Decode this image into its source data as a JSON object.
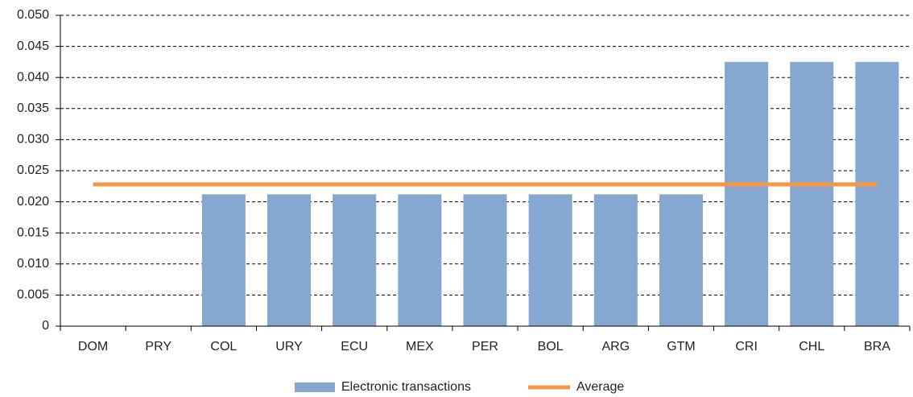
{
  "chart_data": {
    "type": "bar",
    "categories": [
      "DOM",
      "PRY",
      "COL",
      "URY",
      "ECU",
      "MEX",
      "PER",
      "BOL",
      "ARG",
      "GTM",
      "CRI",
      "CHL",
      "BRA"
    ],
    "series": [
      {
        "name": "Electronic transactions",
        "color": "#85a7d0",
        "values": [
          0,
          0,
          0.0212,
          0.0212,
          0.0212,
          0.0212,
          0.0212,
          0.0212,
          0.0212,
          0.0212,
          0.0425,
          0.0425,
          0.0425
        ]
      },
      {
        "name": "Average",
        "color": "#f79646",
        "type": "line",
        "values": [
          0.0228,
          0.0228,
          0.0228,
          0.0228,
          0.0228,
          0.0228,
          0.0228,
          0.0228,
          0.0228,
          0.0228,
          0.0228,
          0.0228,
          0.0228
        ]
      }
    ],
    "ylim": [
      0,
      0.05
    ],
    "yticks": [
      0,
      0.005,
      {
        "value": 0.01,
        "label": "0.010"
      },
      0.015,
      {
        "value": 0.02,
        "label": "0.020"
      },
      0.025,
      {
        "value": 0.03,
        "label": "0.030"
      },
      0.035,
      {
        "value": 0.04,
        "label": "0.040"
      },
      0.045,
      {
        "value": 0.05,
        "label": "0.050"
      }
    ],
    "grid": true,
    "legend": "bottom"
  }
}
